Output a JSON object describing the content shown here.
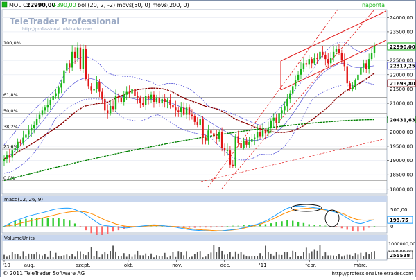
{
  "header": {
    "instrument": "MOL C:",
    "close": "22990,00",
    "change": "+390,00",
    "indicators": "boll(20, 2, -2) movs(50, 0) movs(200, 0)",
    "period": "naponta"
  },
  "watermark": {
    "brand": "TeleTrader Professional",
    "url": "http://professional.teletrader.com"
  },
  "footer": {
    "copyright": "© 2011 TeleTrader Software AG",
    "url": "http://professional.teletrader.com"
  },
  "panels": {
    "macd_label": "macd(12, 26, 9)",
    "volume_label": "VolumeUnits"
  },
  "colors": {
    "background": "#ffffff",
    "frame": "#7f8fa9",
    "label_bar": "#c9d7ee",
    "up_candle": "#18b518",
    "down_candle": "#e11414",
    "bollinger": "#3f3fd4",
    "movs50": "#8b0000",
    "movs200": "#008000",
    "channel": "#e21a1a",
    "macd_line": "#1fa0ff",
    "macd_signal": "#ff8c00",
    "macd_hist_up": "#33cc33",
    "macd_hist_down": "#ff6666",
    "volume_bars": "#555555",
    "price_tag_bg": "#ffffff"
  },
  "chart_data": [
    {
      "type": "candlestick",
      "panel": "price",
      "y_ticks": [
        "24000,00",
        "23500,00",
        "23000,00",
        "22500,00",
        "22000,00",
        "21500,00",
        "21000,00",
        "20500,00",
        "20000,00",
        "19500,00",
        "19000,00",
        "18500,00",
        "18000,00"
      ],
      "ylim": [
        17850,
        24250
      ],
      "x_ticks": [
        "'10",
        "aug.",
        "szept.",
        "okt.",
        "nov.",
        "dec.",
        "'11",
        "febr.",
        "márc."
      ],
      "fib_levels": [
        {
          "label": "100,0%",
          "value": 23020
        },
        {
          "label": "61,8%",
          "value": 21210
        },
        {
          "label": "50,0%",
          "value": 20655
        },
        {
          "label": "38,2%",
          "value": 20090
        },
        {
          "label": "23,6%",
          "value": 19400
        },
        {
          "label": "0,0%",
          "value": 18300
        }
      ],
      "price_tags": [
        {
          "label": "22990,00",
          "value": 22990,
          "color": "#18b518"
        },
        {
          "label": "22317,25",
          "value": 22317,
          "color": "#3f3fd4"
        },
        {
          "label": "21699,80",
          "value": 21700,
          "color": "#8b0000"
        },
        {
          "label": "20431,63",
          "value": 20432,
          "color": "#008000"
        }
      ],
      "closes": [
        19050,
        19200,
        19100,
        19350,
        19450,
        19650,
        19600,
        19800,
        19900,
        20050,
        20150,
        20250,
        20450,
        20600,
        20750,
        20850,
        20950,
        21100,
        21250,
        21350,
        21550,
        21700,
        22150,
        22400,
        22250,
        22800,
        22600,
        22950,
        22200,
        22900,
        21850,
        21600,
        21450,
        21500,
        21750,
        21400,
        21150,
        20750,
        20650,
        20900,
        20800,
        21250,
        21200,
        21050,
        21300,
        21400,
        21350,
        21500,
        21250,
        21200,
        21000,
        20950,
        21250,
        21150,
        21300,
        21050,
        21200,
        21000,
        21150,
        21050,
        21100,
        20950,
        20850,
        20750,
        20700,
        20850,
        20600,
        20850,
        20600,
        20550,
        20350,
        20250,
        20450,
        19800,
        19700,
        20050,
        19950,
        19850,
        19750,
        20000,
        19450,
        19350,
        19350,
        18850,
        18800,
        19850,
        19600,
        19450,
        19700,
        19550,
        19650,
        19750,
        19800,
        20000,
        19850,
        20050,
        19950,
        20150,
        20400,
        20500,
        20300,
        20650,
        20750,
        20900,
        21150,
        21350,
        21600,
        21800,
        22000,
        22200,
        22400,
        22350,
        22550,
        22400,
        22600,
        22550,
        22800,
        22700,
        22550,
        22400,
        22600,
        22800,
        22900,
        22750,
        22500,
        22300,
        21700,
        21500,
        21600,
        21800,
        22000,
        22250,
        22400,
        22200,
        22550,
        22750,
        22990
      ],
      "bollinger_mid": [
        19050,
        19120,
        19180,
        19250,
        19340,
        19440,
        19530,
        19620,
        19720,
        19820,
        19920,
        20020,
        20130,
        20240,
        20360,
        20480,
        20600,
        20730,
        20860,
        20990,
        21110,
        21230,
        21350,
        21480,
        21570,
        21650,
        21720,
        21790,
        21830,
        21870,
        21890,
        21880,
        21860,
        21840,
        21800,
        21760,
        21700,
        21620,
        21550,
        21470,
        21400,
        21340,
        21290,
        21250,
        21210,
        21190,
        21180,
        21170,
        21150,
        21130,
        21120,
        21110,
        21120,
        21130,
        21140,
        21130,
        21120,
        21110,
        21090,
        21070,
        21050,
        21020,
        20990,
        20950,
        20910,
        20870,
        20830,
        20800,
        20760,
        20710,
        20660,
        20610,
        20560,
        20510,
        20440,
        20380,
        20320,
        20260,
        20200,
        20150,
        20090,
        20030,
        19980,
        19920,
        19860,
        19830,
        19790,
        19760,
        19740,
        19720,
        19710,
        19700,
        19700,
        19710,
        19730,
        19750,
        19780,
        19820,
        19860,
        19920,
        19990,
        20070,
        20160,
        20260,
        20380,
        20500,
        20630,
        20770,
        20910,
        21060,
        21200,
        21340,
        21480,
        21610,
        21730,
        21850,
        21950,
        22040,
        22120,
        22190,
        22250,
        22300,
        22340,
        22370,
        22390,
        22390,
        22360,
        22320,
        22280,
        22260,
        22250,
        22250,
        22260,
        22270,
        22290,
        22300,
        22317
      ]
    },
    {
      "type": "line",
      "panel": "macd",
      "label": "macd(12, 26, 9)",
      "y_ticks": [
        "500,00",
        "0"
      ],
      "ylim": [
        -180,
        700
      ],
      "tag": {
        "label": "193,75",
        "value": 193.75
      },
      "macd": [
        0,
        40,
        80,
        120,
        160,
        190,
        220,
        250,
        280,
        310,
        330,
        350,
        370,
        390,
        410,
        430,
        450,
        480,
        500,
        520,
        530,
        540,
        545,
        550,
        545,
        530,
        500,
        470,
        440,
        400,
        350,
        300,
        240,
        180,
        120,
        70,
        40,
        20,
        10,
        0,
        -10,
        -20,
        -30,
        -40,
        -45,
        -50,
        -40,
        -30,
        -20,
        -10,
        0,
        10,
        20,
        30,
        40,
        45,
        40,
        30,
        20,
        10,
        0,
        -10,
        -20,
        -30,
        -45,
        -60,
        -75,
        -90,
        -100,
        -110,
        -120,
        -125,
        -130,
        -135,
        -140,
        -145,
        -150,
        -150,
        -150,
        -145,
        -140,
        -130,
        -120,
        -110,
        -100,
        -90,
        -80,
        -60,
        -40,
        -20,
        0,
        20,
        40,
        60,
        90,
        120,
        160,
        200,
        250,
        300,
        350,
        400,
        450,
        500,
        540,
        570,
        590,
        600,
        610,
        610,
        600,
        590,
        580,
        570,
        560,
        550,
        540,
        520,
        500,
        480,
        460,
        440,
        420,
        400,
        350,
        300,
        250,
        200,
        150,
        110,
        90,
        80,
        100,
        130,
        160,
        180,
        194
      ],
      "signal": [
        0,
        10,
        20,
        30,
        50,
        70,
        90,
        110,
        130,
        150,
        170,
        190,
        210,
        230,
        250,
        270,
        290,
        310,
        330,
        350,
        370,
        390,
        400,
        420,
        430,
        440,
        445,
        450,
        448,
        440,
        430,
        410,
        380,
        350,
        310,
        270,
        230,
        190,
        160,
        130,
        100,
        70,
        50,
        30,
        10,
        0,
        -5,
        -10,
        -10,
        -10,
        -5,
        0,
        5,
        10,
        15,
        20,
        20,
        20,
        15,
        10,
        5,
        0,
        -5,
        -10,
        -20,
        -30,
        -45,
        -60,
        -70,
        -80,
        -90,
        -100,
        -105,
        -110,
        -115,
        -120,
        -125,
        -130,
        -135,
        -135,
        -135,
        -130,
        -125,
        -120,
        -110,
        -100,
        -90,
        -80,
        -60,
        -40,
        -20,
        0,
        20,
        40,
        60,
        90,
        120,
        150,
        190,
        230,
        270,
        310,
        350,
        390,
        420,
        450,
        480,
        500,
        520,
        530,
        535,
        540,
        540,
        535,
        530,
        520,
        510,
        500,
        490,
        480,
        470,
        460,
        440,
        420,
        390,
        360,
        320,
        280,
        250,
        220,
        200,
        190,
        185,
        185,
        188,
        192,
        194
      ]
    },
    {
      "type": "bar",
      "panel": "volume",
      "label": "VolumeUnits",
      "y_ticks": [
        "1000000,00",
        "500000,00"
      ],
      "ylim": [
        0,
        1100000
      ],
      "tag": {
        "label": "255538",
        "value": 255538
      }
    }
  ]
}
